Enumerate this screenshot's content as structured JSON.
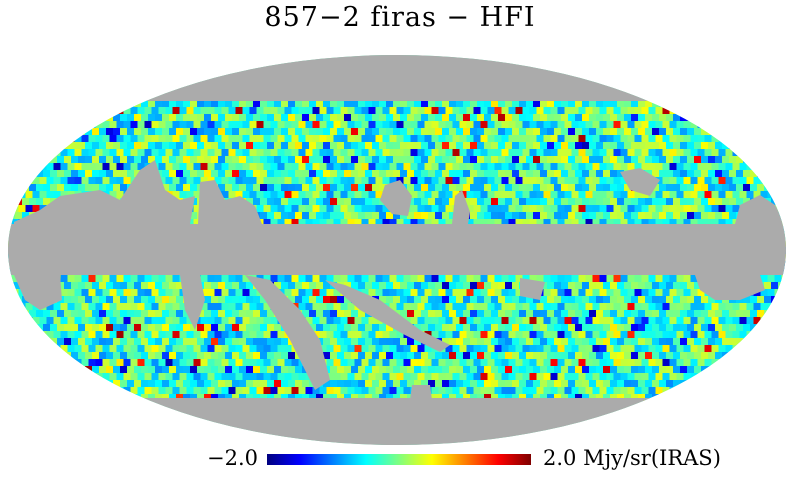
{
  "title": "857−2 firas − HFI",
  "colorbar": {
    "min_label": "−2.0",
    "max_label": "2.0 Mjy/sr(IRAS)",
    "min_value": -2.0,
    "max_value": 2.0,
    "colormap": "jet",
    "stops": [
      "#00007f",
      "#0000ff",
      "#00ffff",
      "#7fff7f",
      "#ffff00",
      "#ff0000",
      "#7f0000"
    ]
  },
  "colors": {
    "masked": "#ababab",
    "background": "#ffffff"
  },
  "map": {
    "projection": "Mollweide",
    "masked_regions": [
      "polar caps",
      "galactic plane band"
    ]
  }
}
